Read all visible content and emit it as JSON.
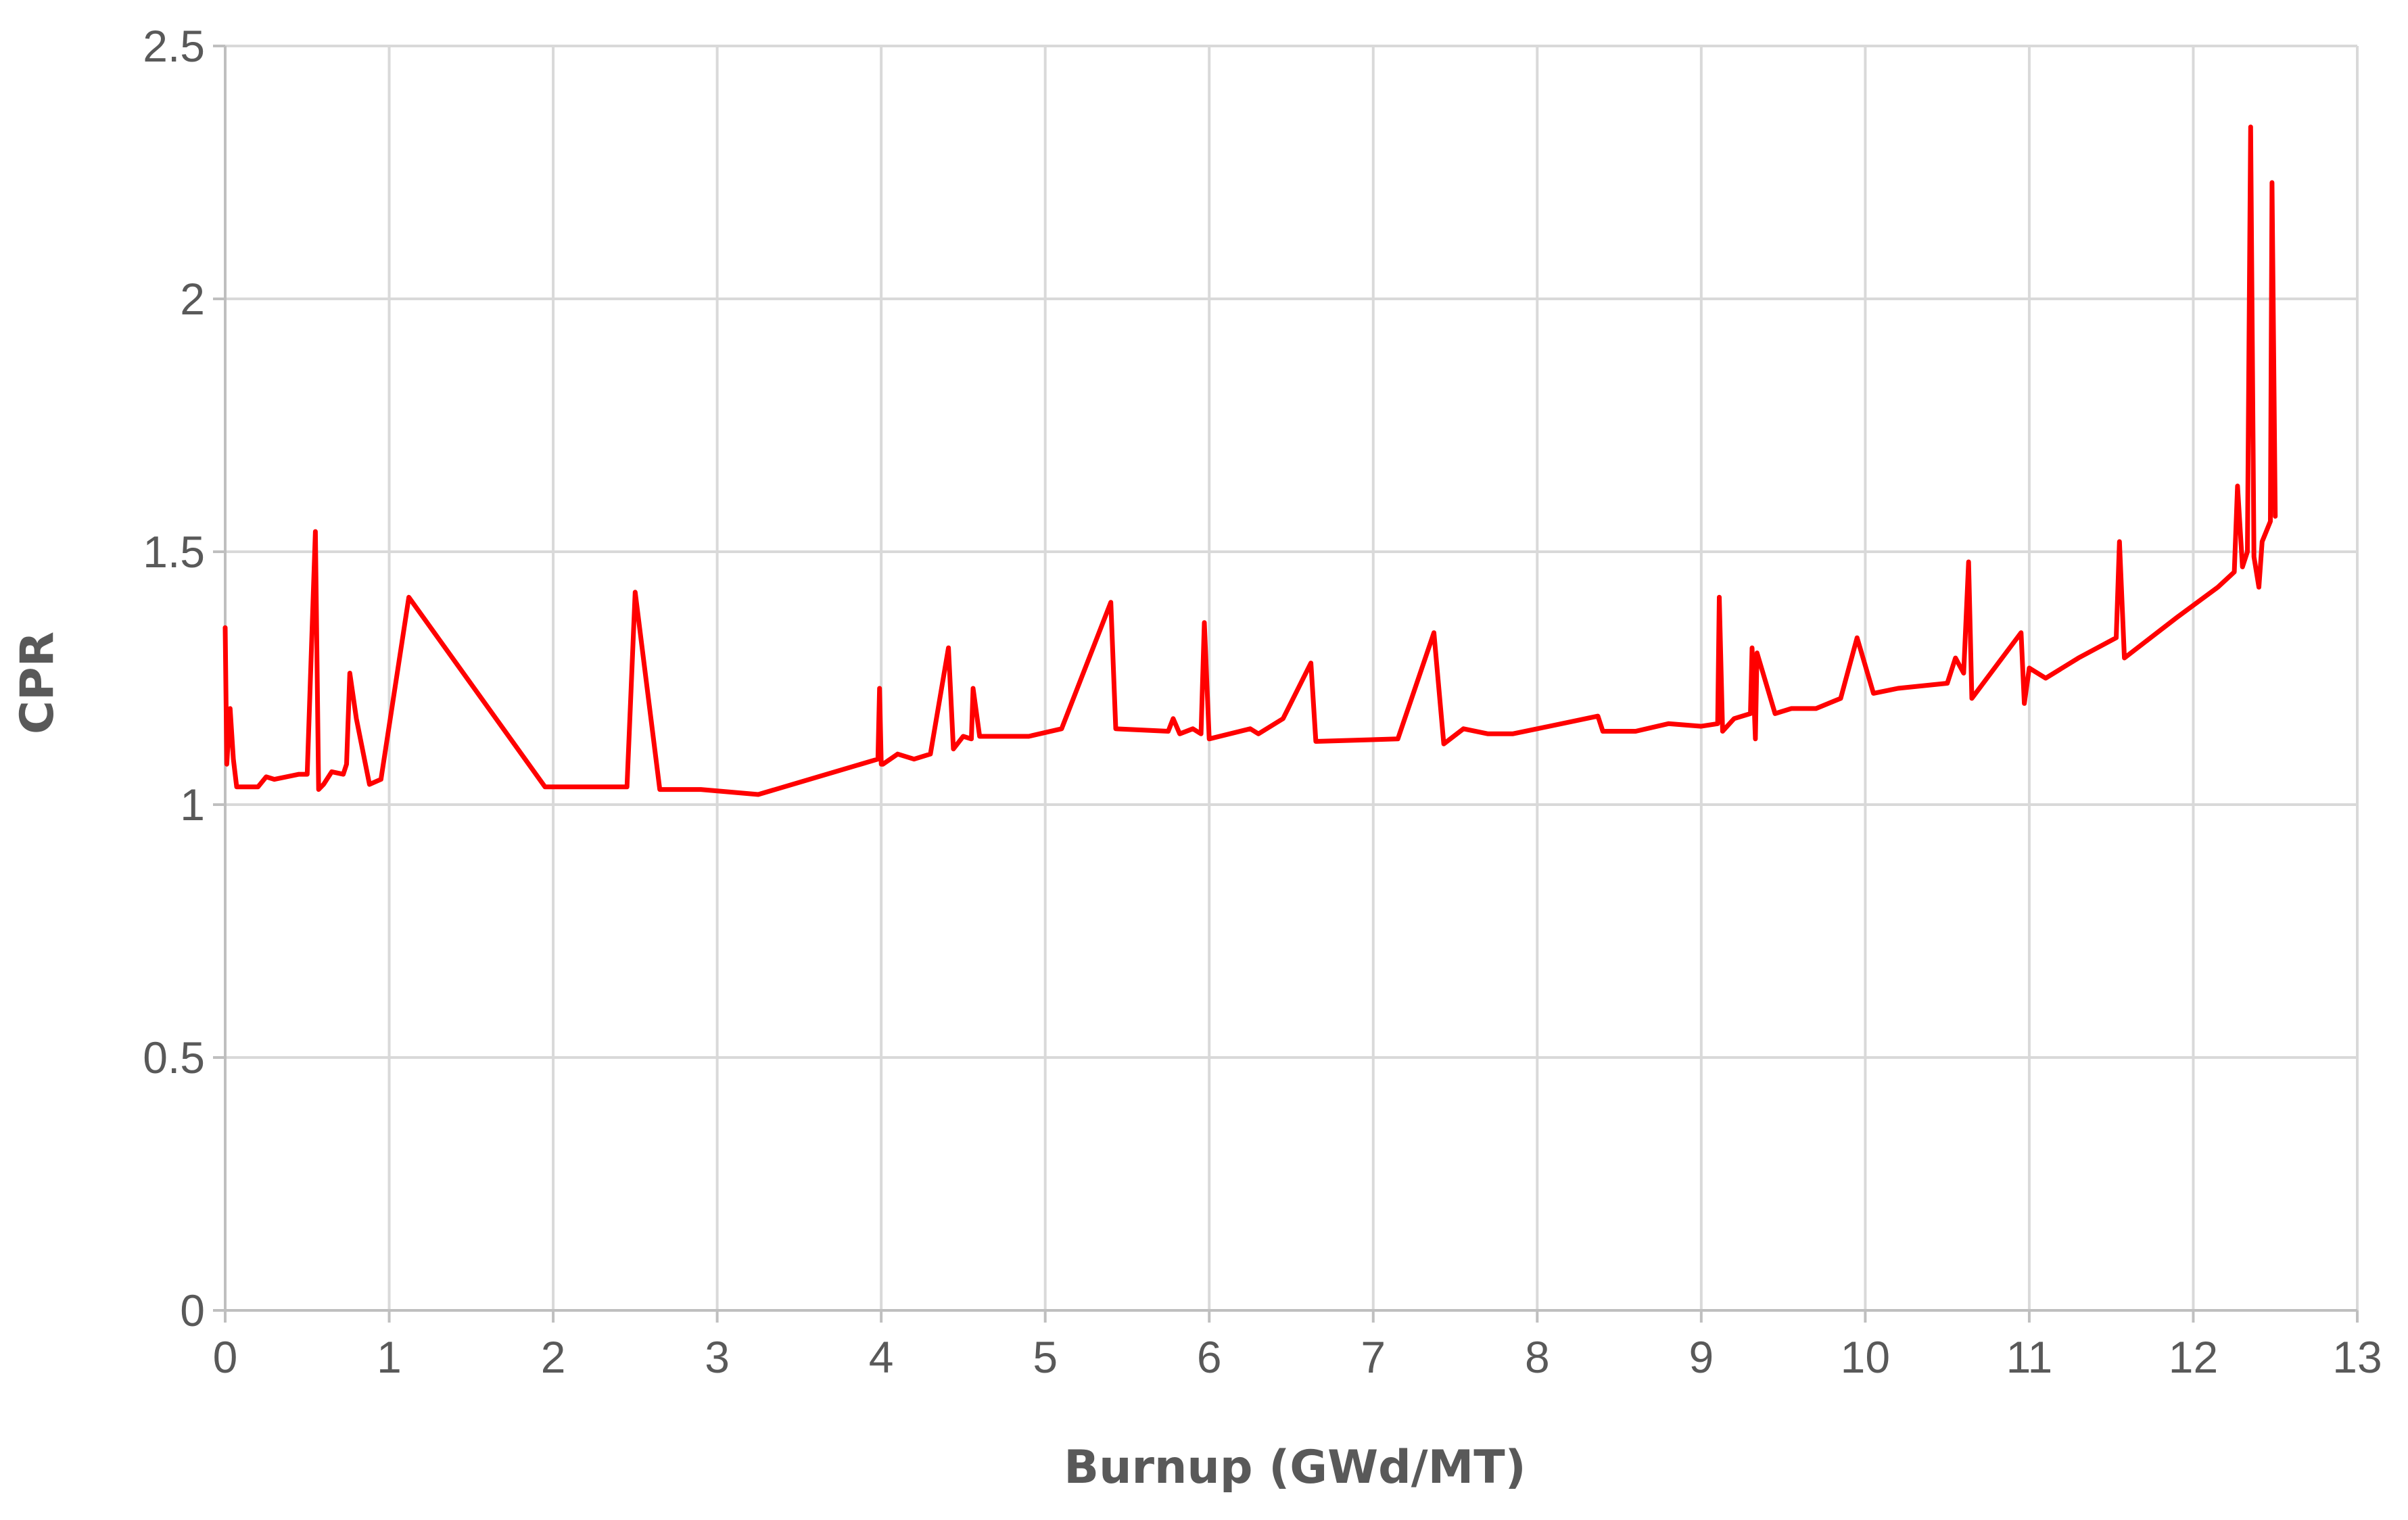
{
  "chart_data": {
    "type": "line",
    "xlabel": "Burnup (GWd/MT)",
    "ylabel": "CPR",
    "xlim": [
      0,
      13
    ],
    "ylim": [
      0,
      2.5
    ],
    "xticks": [
      "0",
      "1",
      "2",
      "3",
      "4",
      "5",
      "6",
      "7",
      "8",
      "9",
      "10",
      "11",
      "12",
      "13"
    ],
    "yticks": [
      "0",
      "0.5",
      "1",
      "1.5",
      "2",
      "2.5"
    ],
    "grid": true,
    "legend": "none",
    "series_color": "#ff0000",
    "series": [
      {
        "x": [
          0.0,
          0.01,
          0.03,
          0.05,
          0.07,
          0.09,
          0.2,
          0.25,
          0.3,
          0.45,
          0.5,
          0.55,
          0.57,
          0.6,
          0.65,
          0.72,
          0.74,
          0.76,
          0.8,
          0.88,
          0.95,
          1.12,
          1.95,
          2.2,
          2.45,
          2.5,
          2.65,
          2.9,
          3.25,
          3.98,
          3.99,
          4.0,
          4.01,
          4.1,
          4.2,
          4.3,
          4.41,
          4.44,
          4.5,
          4.55,
          4.56,
          4.6,
          4.9,
          5.1,
          5.4,
          5.43,
          5.75,
          5.78,
          5.82,
          5.9,
          5.95,
          5.97,
          6.0,
          6.25,
          6.3,
          6.45,
          6.62,
          6.65,
          7.15,
          7.37,
          7.43,
          7.55,
          7.7,
          7.85,
          8.0,
          8.37,
          8.4,
          8.6,
          8.8,
          9.0,
          9.1,
          9.11,
          9.13,
          9.2,
          9.3,
          9.31,
          9.33,
          9.34,
          9.45,
          9.55,
          9.7,
          9.85,
          9.95,
          10.05,
          10.2,
          10.5,
          10.55,
          10.6,
          10.63,
          10.65,
          10.95,
          10.97,
          11.0,
          11.1,
          11.3,
          11.53,
          11.55,
          11.58,
          11.7,
          11.9,
          12.15,
          12.25,
          12.27,
          12.3,
          12.33,
          12.35,
          12.37,
          12.4,
          12.42,
          12.47,
          12.48,
          12.5
        ],
        "y": [
          1.35,
          1.08,
          1.19,
          1.09,
          1.035,
          1.035,
          1.035,
          1.055,
          1.05,
          1.06,
          1.06,
          1.54,
          1.03,
          1.04,
          1.065,
          1.06,
          1.08,
          1.26,
          1.17,
          1.04,
          1.05,
          1.41,
          1.035,
          1.035,
          1.035,
          1.42,
          1.03,
          1.03,
          1.02,
          1.09,
          1.23,
          1.08,
          1.08,
          1.1,
          1.09,
          1.1,
          1.31,
          1.11,
          1.135,
          1.13,
          1.23,
          1.135,
          1.135,
          1.15,
          1.4,
          1.15,
          1.145,
          1.17,
          1.14,
          1.15,
          1.14,
          1.36,
          1.13,
          1.15,
          1.14,
          1.17,
          1.28,
          1.125,
          1.13,
          1.34,
          1.12,
          1.15,
          1.14,
          1.14,
          1.15,
          1.175,
          1.145,
          1.145,
          1.16,
          1.155,
          1.16,
          1.41,
          1.145,
          1.17,
          1.18,
          1.31,
          1.13,
          1.3,
          1.18,
          1.19,
          1.19,
          1.21,
          1.33,
          1.22,
          1.23,
          1.24,
          1.29,
          1.26,
          1.48,
          1.21,
          1.34,
          1.2,
          1.27,
          1.25,
          1.29,
          1.33,
          1.52,
          1.29,
          1.32,
          1.37,
          1.43,
          1.46,
          1.63,
          1.47,
          1.5,
          2.34,
          1.49,
          1.43,
          1.52,
          1.56,
          2.23,
          1.57
        ]
      }
    ]
  }
}
